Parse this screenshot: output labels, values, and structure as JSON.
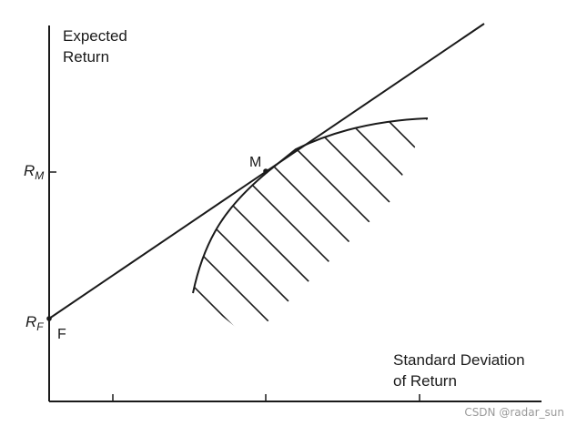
{
  "labels": {
    "y_axis_title": [
      "Expected",
      "Return"
    ],
    "x_axis_title": [
      "Standard Deviation",
      "of Return"
    ],
    "market_return": {
      "symbol": "R",
      "subscript": "M"
    },
    "risk_free_rate": {
      "symbol": "R",
      "subscript": "F"
    },
    "tangency_point": "M",
    "intercept_point": "F"
  },
  "watermark": "CSDN @radar_sun",
  "colors": {
    "ink": "#1a1a1a",
    "watermark": "#9a9a9a",
    "background": "#ffffff"
  }
}
